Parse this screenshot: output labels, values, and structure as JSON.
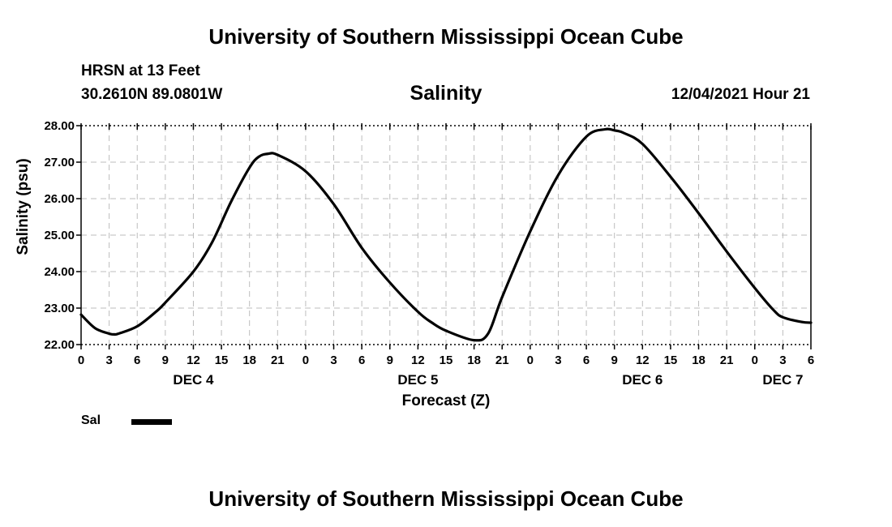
{
  "header": {
    "title": "University of Southern Mississippi Ocean Cube",
    "station": "HRSN at 13 Feet",
    "coords": "30.2610N  89.0801W",
    "variable": "Salinity",
    "datetime": "12/04/2021 Hour 21"
  },
  "footer": {
    "title": "University of Southern Mississippi Ocean Cube"
  },
  "legend": {
    "label": "Sal",
    "color": "#000000"
  },
  "chart_data": {
    "type": "line",
    "title": "Salinity",
    "xlabel": "Forecast (Z)",
    "ylabel": "Salinity (psu)",
    "x_unit": "forecast hours from 12/04/2021 00Z",
    "xlim": [
      0,
      78
    ],
    "ylim": [
      22,
      28
    ],
    "grid": true,
    "y_ticks": [
      "22.00",
      "23.00",
      "24.00",
      "25.00",
      "26.00",
      "27.00",
      "28.00"
    ],
    "y_tick_values": [
      22,
      23,
      24,
      25,
      26,
      27,
      28
    ],
    "x_tick_labels": [
      "0",
      "3",
      "6",
      "9",
      "12",
      "15",
      "18",
      "21",
      "0",
      "3",
      "6",
      "9",
      "12",
      "15",
      "18",
      "21",
      "0",
      "3",
      "6",
      "9",
      "12",
      "15",
      "18",
      "21",
      "0",
      "3",
      "6"
    ],
    "x_tick_hours": [
      0,
      3,
      6,
      9,
      12,
      15,
      18,
      21,
      24,
      27,
      30,
      33,
      36,
      39,
      42,
      45,
      48,
      51,
      54,
      57,
      60,
      63,
      66,
      69,
      72,
      75,
      78
    ],
    "date_labels": [
      {
        "label": "DEC 4",
        "hour": 12
      },
      {
        "label": "DEC 5",
        "hour": 36
      },
      {
        "label": "DEC 6",
        "hour": 60
      },
      {
        "label": "DEC 7",
        "hour": 75
      }
    ],
    "series": [
      {
        "name": "Sal",
        "x": [
          0,
          1.5,
          3,
          3.5,
          4,
          6,
          8,
          9,
          12,
          14,
          16,
          18,
          19,
          20,
          21,
          24,
          27,
          30,
          33,
          36,
          37.5,
          39,
          42,
          43.5,
          45,
          48,
          51,
          54,
          56,
          57,
          58,
          60,
          63,
          66,
          69,
          72,
          74,
          75,
          77,
          78
        ],
        "y": [
          22.82,
          22.45,
          22.3,
          22.28,
          22.3,
          22.5,
          22.9,
          23.15,
          24.0,
          24.8,
          25.9,
          26.85,
          27.15,
          27.23,
          27.2,
          26.75,
          25.85,
          24.65,
          23.7,
          22.9,
          22.6,
          22.38,
          22.12,
          22.3,
          23.3,
          25.1,
          26.65,
          27.7,
          27.9,
          27.87,
          27.8,
          27.5,
          26.6,
          25.6,
          24.55,
          23.55,
          22.95,
          22.75,
          22.62,
          22.6
        ]
      }
    ]
  }
}
